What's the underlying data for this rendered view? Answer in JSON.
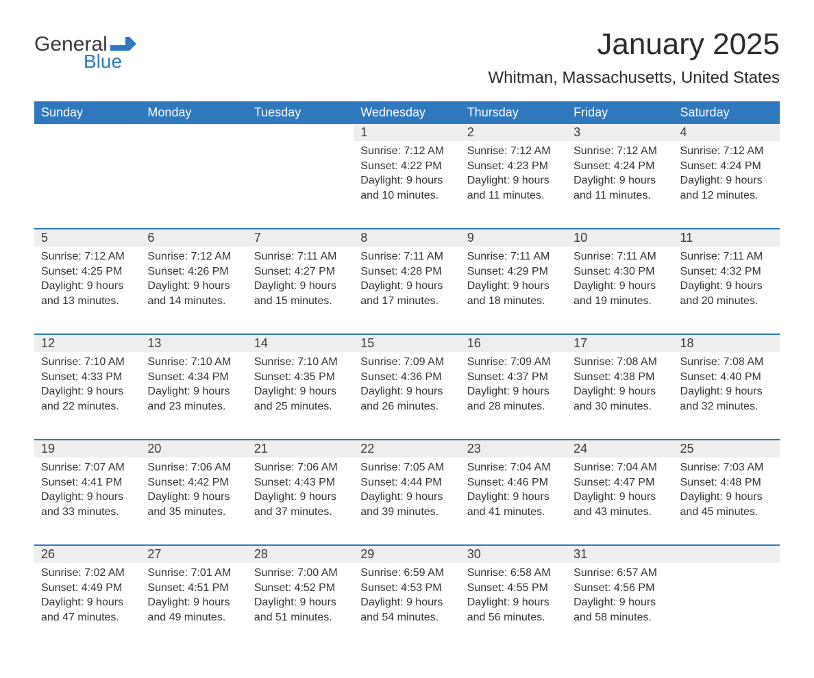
{
  "logo": {
    "text1": "General",
    "text2": "Blue",
    "flag_color": "#2f78bd"
  },
  "title": "January 2025",
  "location": "Whitman, Massachusetts, United States",
  "header_bg": "#2f78bd",
  "header_fg": "#ffffff",
  "daynum_bg": "#eeeeee",
  "border_color": "#2f78bd",
  "weekdays": [
    "Sunday",
    "Monday",
    "Tuesday",
    "Wednesday",
    "Thursday",
    "Friday",
    "Saturday"
  ],
  "weeks": [
    [
      null,
      null,
      null,
      {
        "n": "1",
        "sunrise": "Sunrise: 7:12 AM",
        "sunset": "Sunset: 4:22 PM",
        "dl1": "Daylight: 9 hours",
        "dl2": "and 10 minutes."
      },
      {
        "n": "2",
        "sunrise": "Sunrise: 7:12 AM",
        "sunset": "Sunset: 4:23 PM",
        "dl1": "Daylight: 9 hours",
        "dl2": "and 11 minutes."
      },
      {
        "n": "3",
        "sunrise": "Sunrise: 7:12 AM",
        "sunset": "Sunset: 4:24 PM",
        "dl1": "Daylight: 9 hours",
        "dl2": "and 11 minutes."
      },
      {
        "n": "4",
        "sunrise": "Sunrise: 7:12 AM",
        "sunset": "Sunset: 4:24 PM",
        "dl1": "Daylight: 9 hours",
        "dl2": "and 12 minutes."
      }
    ],
    [
      {
        "n": "5",
        "sunrise": "Sunrise: 7:12 AM",
        "sunset": "Sunset: 4:25 PM",
        "dl1": "Daylight: 9 hours",
        "dl2": "and 13 minutes."
      },
      {
        "n": "6",
        "sunrise": "Sunrise: 7:12 AM",
        "sunset": "Sunset: 4:26 PM",
        "dl1": "Daylight: 9 hours",
        "dl2": "and 14 minutes."
      },
      {
        "n": "7",
        "sunrise": "Sunrise: 7:11 AM",
        "sunset": "Sunset: 4:27 PM",
        "dl1": "Daylight: 9 hours",
        "dl2": "and 15 minutes."
      },
      {
        "n": "8",
        "sunrise": "Sunrise: 7:11 AM",
        "sunset": "Sunset: 4:28 PM",
        "dl1": "Daylight: 9 hours",
        "dl2": "and 17 minutes."
      },
      {
        "n": "9",
        "sunrise": "Sunrise: 7:11 AM",
        "sunset": "Sunset: 4:29 PM",
        "dl1": "Daylight: 9 hours",
        "dl2": "and 18 minutes."
      },
      {
        "n": "10",
        "sunrise": "Sunrise: 7:11 AM",
        "sunset": "Sunset: 4:30 PM",
        "dl1": "Daylight: 9 hours",
        "dl2": "and 19 minutes."
      },
      {
        "n": "11",
        "sunrise": "Sunrise: 7:11 AM",
        "sunset": "Sunset: 4:32 PM",
        "dl1": "Daylight: 9 hours",
        "dl2": "and 20 minutes."
      }
    ],
    [
      {
        "n": "12",
        "sunrise": "Sunrise: 7:10 AM",
        "sunset": "Sunset: 4:33 PM",
        "dl1": "Daylight: 9 hours",
        "dl2": "and 22 minutes."
      },
      {
        "n": "13",
        "sunrise": "Sunrise: 7:10 AM",
        "sunset": "Sunset: 4:34 PM",
        "dl1": "Daylight: 9 hours",
        "dl2": "and 23 minutes."
      },
      {
        "n": "14",
        "sunrise": "Sunrise: 7:10 AM",
        "sunset": "Sunset: 4:35 PM",
        "dl1": "Daylight: 9 hours",
        "dl2": "and 25 minutes."
      },
      {
        "n": "15",
        "sunrise": "Sunrise: 7:09 AM",
        "sunset": "Sunset: 4:36 PM",
        "dl1": "Daylight: 9 hours",
        "dl2": "and 26 minutes."
      },
      {
        "n": "16",
        "sunrise": "Sunrise: 7:09 AM",
        "sunset": "Sunset: 4:37 PM",
        "dl1": "Daylight: 9 hours",
        "dl2": "and 28 minutes."
      },
      {
        "n": "17",
        "sunrise": "Sunrise: 7:08 AM",
        "sunset": "Sunset: 4:38 PM",
        "dl1": "Daylight: 9 hours",
        "dl2": "and 30 minutes."
      },
      {
        "n": "18",
        "sunrise": "Sunrise: 7:08 AM",
        "sunset": "Sunset: 4:40 PM",
        "dl1": "Daylight: 9 hours",
        "dl2": "and 32 minutes."
      }
    ],
    [
      {
        "n": "19",
        "sunrise": "Sunrise: 7:07 AM",
        "sunset": "Sunset: 4:41 PM",
        "dl1": "Daylight: 9 hours",
        "dl2": "and 33 minutes."
      },
      {
        "n": "20",
        "sunrise": "Sunrise: 7:06 AM",
        "sunset": "Sunset: 4:42 PM",
        "dl1": "Daylight: 9 hours",
        "dl2": "and 35 minutes."
      },
      {
        "n": "21",
        "sunrise": "Sunrise: 7:06 AM",
        "sunset": "Sunset: 4:43 PM",
        "dl1": "Daylight: 9 hours",
        "dl2": "and 37 minutes."
      },
      {
        "n": "22",
        "sunrise": "Sunrise: 7:05 AM",
        "sunset": "Sunset: 4:44 PM",
        "dl1": "Daylight: 9 hours",
        "dl2": "and 39 minutes."
      },
      {
        "n": "23",
        "sunrise": "Sunrise: 7:04 AM",
        "sunset": "Sunset: 4:46 PM",
        "dl1": "Daylight: 9 hours",
        "dl2": "and 41 minutes."
      },
      {
        "n": "24",
        "sunrise": "Sunrise: 7:04 AM",
        "sunset": "Sunset: 4:47 PM",
        "dl1": "Daylight: 9 hours",
        "dl2": "and 43 minutes."
      },
      {
        "n": "25",
        "sunrise": "Sunrise: 7:03 AM",
        "sunset": "Sunset: 4:48 PM",
        "dl1": "Daylight: 9 hours",
        "dl2": "and 45 minutes."
      }
    ],
    [
      {
        "n": "26",
        "sunrise": "Sunrise: 7:02 AM",
        "sunset": "Sunset: 4:49 PM",
        "dl1": "Daylight: 9 hours",
        "dl2": "and 47 minutes."
      },
      {
        "n": "27",
        "sunrise": "Sunrise: 7:01 AM",
        "sunset": "Sunset: 4:51 PM",
        "dl1": "Daylight: 9 hours",
        "dl2": "and 49 minutes."
      },
      {
        "n": "28",
        "sunrise": "Sunrise: 7:00 AM",
        "sunset": "Sunset: 4:52 PM",
        "dl1": "Daylight: 9 hours",
        "dl2": "and 51 minutes."
      },
      {
        "n": "29",
        "sunrise": "Sunrise: 6:59 AM",
        "sunset": "Sunset: 4:53 PM",
        "dl1": "Daylight: 9 hours",
        "dl2": "and 54 minutes."
      },
      {
        "n": "30",
        "sunrise": "Sunrise: 6:58 AM",
        "sunset": "Sunset: 4:55 PM",
        "dl1": "Daylight: 9 hours",
        "dl2": "and 56 minutes."
      },
      {
        "n": "31",
        "sunrise": "Sunrise: 6:57 AM",
        "sunset": "Sunset: 4:56 PM",
        "dl1": "Daylight: 9 hours",
        "dl2": "and 58 minutes."
      },
      null
    ]
  ]
}
